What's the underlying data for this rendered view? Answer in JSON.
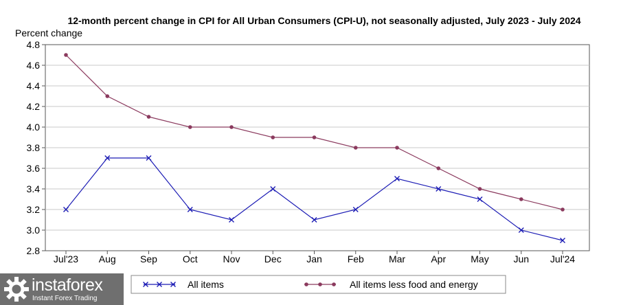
{
  "chart_data": {
    "type": "line",
    "title": "12-month percent change in CPI for All Urban Consumers (CPI-U), not seasonally adjusted, July 2023 - July 2024",
    "ylabel": "Percent change",
    "xlabel": "",
    "categories": [
      "Jul'23",
      "Aug",
      "Sep",
      "Oct",
      "Nov",
      "Dec",
      "Jan",
      "Feb",
      "Mar",
      "Apr",
      "May",
      "Jun",
      "Jul'24"
    ],
    "ylim": [
      2.8,
      4.8
    ],
    "yticks": [
      "2.8",
      "3.0",
      "3.2",
      "3.4",
      "3.6",
      "3.8",
      "4.0",
      "4.2",
      "4.4",
      "4.6",
      "4.8"
    ],
    "grid": true,
    "legend_position": "bottom",
    "series": [
      {
        "name": "All items",
        "color": "#1a1ab4",
        "marker": "x",
        "values": [
          3.2,
          3.7,
          3.7,
          3.2,
          3.1,
          3.4,
          3.1,
          3.2,
          3.5,
          3.4,
          3.3,
          3.0,
          2.9
        ]
      },
      {
        "name": "All items less food and energy",
        "color": "#8b3a5e",
        "marker": "dot",
        "values": [
          4.7,
          4.3,
          4.1,
          4.0,
          4.0,
          3.9,
          3.9,
          3.8,
          3.8,
          3.6,
          3.4,
          3.3,
          3.2
        ]
      }
    ]
  },
  "watermark": {
    "name": "instaforex",
    "tagline": "Instant Forex Trading",
    "logo_icon": "instaforex-logo-icon"
  }
}
